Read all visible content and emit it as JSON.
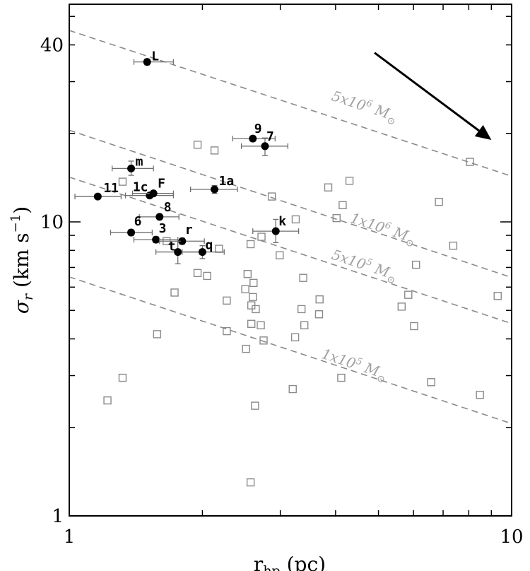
{
  "chart_data": {
    "type": "scatter",
    "title": "",
    "xlabel": {
      "main": "r",
      "sub": "hp",
      "unit": " (pc)"
    },
    "ylabel": {
      "main": "σ",
      "sub": "r",
      "unit_pre": " (km s",
      "unit_sup": "−1",
      "unit_post": ")"
    },
    "x_scale": "log",
    "y_scale": "log",
    "xlim": [
      1,
      10
    ],
    "ylim": [
      1,
      55
    ],
    "x_ticks": [
      {
        "value": 1,
        "label": "1"
      },
      {
        "value": 10,
        "label": "10"
      }
    ],
    "y_ticks": [
      {
        "value": 1,
        "label": "1"
      },
      {
        "value": 10,
        "label": "10"
      },
      {
        "value": 40,
        "label": "40"
      }
    ],
    "grid": false,
    "arrow": {
      "from": [
        4.9,
        37.6
      ],
      "to": [
        9.0,
        19.0
      ]
    },
    "mass_lines": [
      {
        "label": "5x10",
        "exp": "6",
        "unit": " M",
        "sun": "⊙",
        "x1": 1,
        "y1": 44.8,
        "x2": 10,
        "y2": 14.3,
        "label_x": 3.9,
        "label_y": 26.0
      },
      {
        "label": "1x10",
        "exp": "6",
        "unit": " M",
        "sun": "⊙",
        "x1": 1,
        "y1": 20.5,
        "x2": 10,
        "y2": 6.47,
        "label_x": 4.3,
        "label_y": 10.0
      },
      {
        "label": "5x10",
        "exp": "5",
        "unit": " M",
        "sun": "⊙",
        "x1": 1,
        "y1": 14.2,
        "x2": 10,
        "y2": 4.51,
        "label_x": 3.9,
        "label_y": 7.5
      },
      {
        "label": "1x10",
        "exp": "5",
        "unit": " M",
        "sun": "⊙",
        "x1": 1,
        "y1": 6.5,
        "x2": 10,
        "y2": 2.06,
        "label_x": 3.7,
        "label_y": 3.45
      }
    ],
    "series": [
      {
        "marker": "filled-circle",
        "points": [
          {
            "label": "L",
            "x": 1.5,
            "y": 35.0,
            "xerr": [
              1.4,
              1.72
            ],
            "yerr": [
              34.2,
              35.8
            ]
          },
          {
            "label": "9",
            "x": 2.6,
            "y": 19.2,
            "xerr": [
              2.34,
              2.92
            ],
            "yerr": [
              18.8,
              19.6
            ]
          },
          {
            "label": "7",
            "x": 2.77,
            "y": 18.1,
            "xerr": [
              2.45,
              3.12
            ],
            "yerr": [
              16.8,
              19.3
            ]
          },
          {
            "label": "m",
            "x": 1.38,
            "y": 15.2,
            "xerr": [
              1.25,
              1.55
            ],
            "yerr": [
              14.4,
              16.1
            ]
          },
          {
            "label": "1a",
            "x": 2.13,
            "y": 12.9,
            "xerr": [
              1.88,
              2.4
            ],
            "yerr": [
              12.5,
              13.3
            ]
          },
          {
            "label": "11",
            "x": 1.16,
            "y": 12.2,
            "xerr": [
              1.03,
              1.31
            ],
            "yerr": [
              12.0,
              12.4
            ]
          },
          {
            "label": "1c",
            "x": 1.52,
            "y": 12.3,
            "xerr": [
              1.34,
              1.72
            ],
            "yerr": [
              12.1,
              12.5
            ]
          },
          {
            "label": "F",
            "x": 1.55,
            "y": 12.5,
            "xerr": [
              1.39,
              1.72
            ],
            "yerr": [
              12.3,
              12.7
            ]
          },
          {
            "label": "8",
            "x": 1.6,
            "y": 10.4,
            "xerr": [
              1.44,
              1.77
            ],
            "yerr": [
              10.2,
              10.6
            ]
          },
          {
            "label": "6",
            "x": 1.38,
            "y": 9.2,
            "xerr": [
              1.24,
              1.54
            ],
            "yerr": [
              9.0,
              9.4
            ]
          },
          {
            "label": "k",
            "x": 2.93,
            "y": 9.3,
            "xerr": [
              2.6,
              3.3
            ],
            "yerr": [
              8.5,
              10.2
            ]
          },
          {
            "label": "3",
            "x": 1.57,
            "y": 8.7,
            "xerr": [
              1.4,
              1.76
            ],
            "yerr": [
              8.5,
              8.9
            ]
          },
          {
            "label": "r",
            "x": 1.8,
            "y": 8.6,
            "xerr": [
              1.6,
              2.02
            ],
            "yerr": [
              8.4,
              8.8
            ]
          },
          {
            "label": "t",
            "x": 1.76,
            "y": 7.9,
            "xerr": [
              1.57,
              1.97
            ],
            "yerr": [
              7.2,
              8.6
            ]
          },
          {
            "label": "q",
            "x": 2.0,
            "y": 7.9,
            "xerr": [
              1.8,
              2.24
            ],
            "yerr": [
              7.5,
              8.3
            ]
          }
        ]
      },
      {
        "marker": "open-square",
        "points": [
          {
            "x": 1.95,
            "y": 18.3
          },
          {
            "x": 2.13,
            "y": 17.5
          },
          {
            "x": 8.05,
            "y": 16.0
          },
          {
            "x": 4.3,
            "y": 13.8
          },
          {
            "x": 3.85,
            "y": 13.1
          },
          {
            "x": 1.32,
            "y": 13.7
          },
          {
            "x": 2.87,
            "y": 12.2
          },
          {
            "x": 6.85,
            "y": 11.7
          },
          {
            "x": 4.15,
            "y": 11.4
          },
          {
            "x": 4.02,
            "y": 10.3
          },
          {
            "x": 3.25,
            "y": 10.2
          },
          {
            "x": 2.72,
            "y": 8.9
          },
          {
            "x": 2.57,
            "y": 8.4
          },
          {
            "x": 1.66,
            "y": 8.6
          },
          {
            "x": 2.18,
            "y": 8.1
          },
          {
            "x": 7.38,
            "y": 8.3
          },
          {
            "x": 2.99,
            "y": 7.7
          },
          {
            "x": 6.08,
            "y": 7.15
          },
          {
            "x": 2.53,
            "y": 6.65
          },
          {
            "x": 3.38,
            "y": 6.45
          },
          {
            "x": 1.95,
            "y": 6.7
          },
          {
            "x": 2.05,
            "y": 6.55
          },
          {
            "x": 2.61,
            "y": 6.2
          },
          {
            "x": 1.73,
            "y": 5.75
          },
          {
            "x": 2.5,
            "y": 5.9
          },
          {
            "x": 3.68,
            "y": 5.45
          },
          {
            "x": 5.84,
            "y": 5.65
          },
          {
            "x": 2.6,
            "y": 5.55
          },
          {
            "x": 9.3,
            "y": 5.6
          },
          {
            "x": 2.27,
            "y": 5.4
          },
          {
            "x": 5.64,
            "y": 5.15
          },
          {
            "x": 3.35,
            "y": 5.05
          },
          {
            "x": 2.58,
            "y": 5.2
          },
          {
            "x": 2.64,
            "y": 5.05
          },
          {
            "x": 3.67,
            "y": 4.85
          },
          {
            "x": 2.58,
            "y": 4.5
          },
          {
            "x": 2.71,
            "y": 4.45
          },
          {
            "x": 6.02,
            "y": 4.42
          },
          {
            "x": 3.4,
            "y": 4.45
          },
          {
            "x": 2.27,
            "y": 4.25
          },
          {
            "x": 1.58,
            "y": 4.15
          },
          {
            "x": 3.24,
            "y": 4.05
          },
          {
            "x": 2.75,
            "y": 3.95
          },
          {
            "x": 2.51,
            "y": 3.7
          },
          {
            "x": 1.32,
            "y": 2.95
          },
          {
            "x": 4.12,
            "y": 2.95
          },
          {
            "x": 6.58,
            "y": 2.85
          },
          {
            "x": 3.2,
            "y": 2.7
          },
          {
            "x": 8.48,
            "y": 2.58
          },
          {
            "x": 1.22,
            "y": 2.47
          },
          {
            "x": 2.63,
            "y": 2.37
          },
          {
            "x": 2.57,
            "y": 1.3
          }
        ]
      }
    ]
  }
}
